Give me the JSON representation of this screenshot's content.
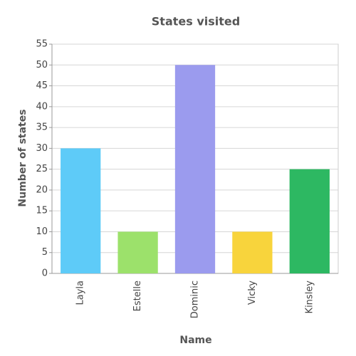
{
  "chart_data": {
    "type": "bar",
    "title": "States visited",
    "x_label": "Name",
    "y_label": "Number of states",
    "categories": [
      "Layla",
      "Estelle",
      "Dominic",
      "Vicky",
      "Kinsley"
    ],
    "values": [
      30,
      10,
      50,
      10,
      25
    ],
    "colors": [
      "#5ecbf8",
      "#9ce16b",
      "#9b9bee",
      "#f8d43c",
      "#2db862"
    ],
    "ylim": [
      0,
      55
    ],
    "yticks": [
      0,
      5,
      10,
      15,
      20,
      25,
      30,
      35,
      40,
      45,
      50,
      55
    ],
    "grid": true
  }
}
